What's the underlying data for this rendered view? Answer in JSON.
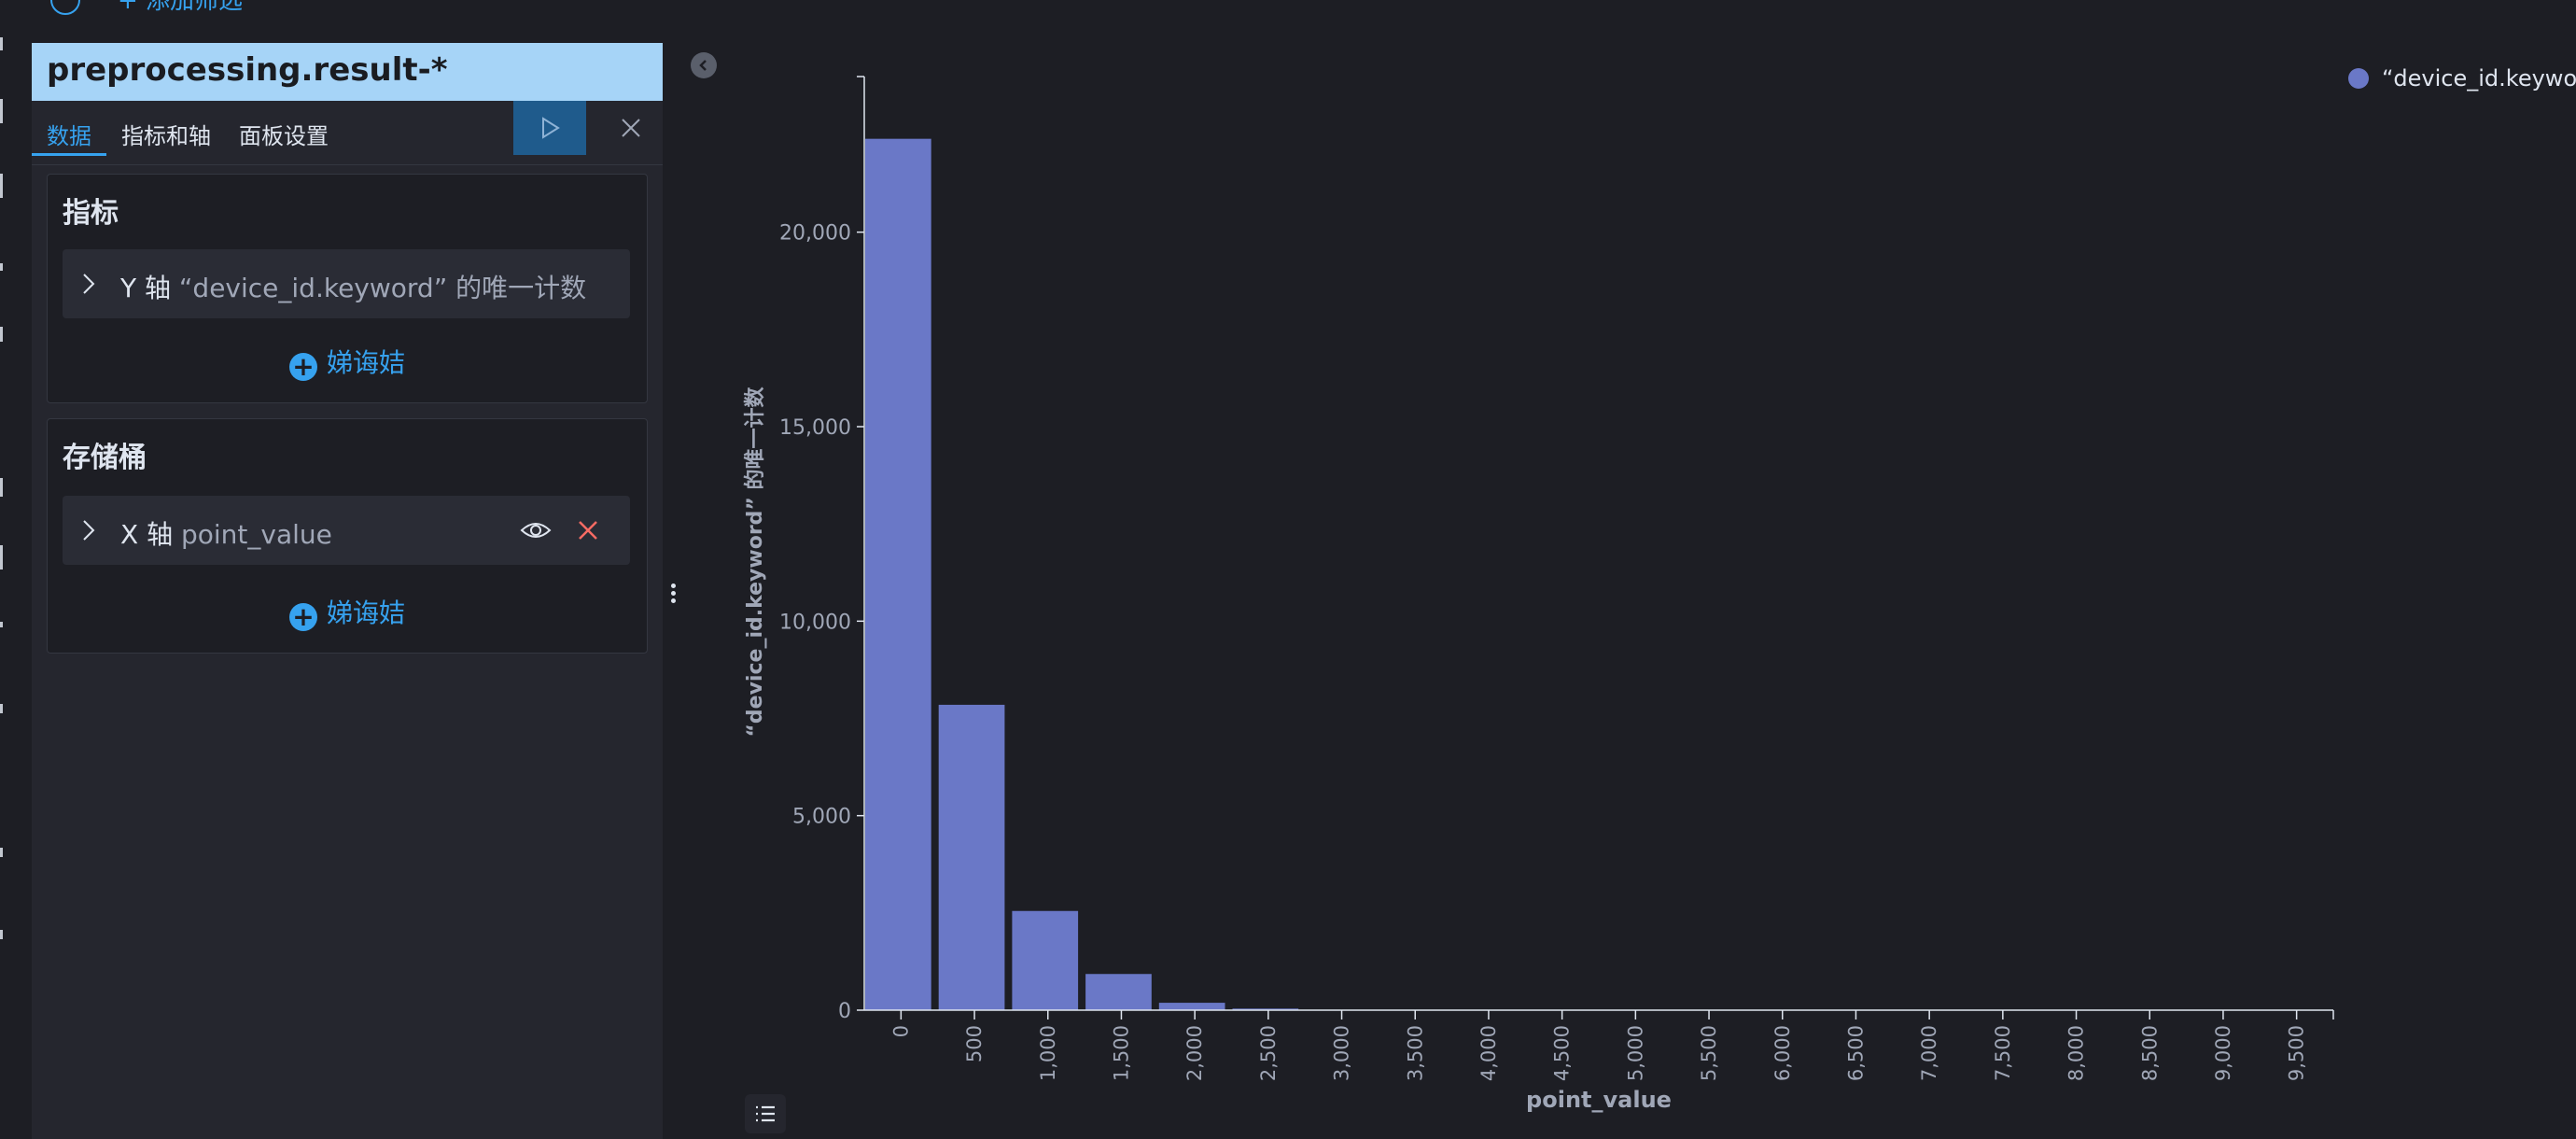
{
  "top_bar": {
    "add_filter_label": "+ 添加筛选"
  },
  "editor": {
    "index_pattern": "preprocessing.result-*",
    "tabs": [
      {
        "label": "数据",
        "active": true
      },
      {
        "label": "指标和轴",
        "active": false
      },
      {
        "label": "面板设置",
        "active": false
      }
    ],
    "metrics": {
      "title": "指标",
      "row": {
        "axis": "Y 轴",
        "field": "“device_id.keyword” 的唯一计数"
      },
      "add_label": "娣诲姞"
    },
    "buckets": {
      "title": "存储桶",
      "row": {
        "axis": "X 轴",
        "field": "point_value"
      },
      "add_label": "娣诲姞"
    }
  },
  "legend": {
    "label": "“device_id.keyword",
    "color": "#6a78c7"
  },
  "colors": {
    "accent": "#36a2ef",
    "bar": "#6a78c7",
    "danger": "#f86b63"
  },
  "icons": {
    "update": "play-icon",
    "close": "close-icon",
    "collapse": "chevron-left-icon",
    "visibility": "eye-icon",
    "remove": "cross-icon",
    "legend_toggle": "list-icon"
  },
  "chart_data": {
    "type": "bar",
    "xlabel": "point_value",
    "ylabel": "“device_id.keyword” 的唯一计数",
    "x": [
      0,
      500,
      1000,
      1500,
      2000,
      2500,
      3000
    ],
    "values": [
      22400,
      7850,
      2550,
      930,
      190,
      40,
      10
    ],
    "x_interval": 500,
    "xlim": [
      0,
      9500
    ],
    "ylim": [
      0,
      24000
    ],
    "x_ticks": [
      "0",
      "500",
      "1,000",
      "1,500",
      "2,000",
      "2,500",
      "3,000",
      "3,500",
      "4,000",
      "4,500",
      "5,000",
      "5,500",
      "6,000",
      "6,500",
      "7,000",
      "7,500",
      "8,000",
      "8,500",
      "9,000",
      "9,500"
    ],
    "y_ticks": [
      {
        "value": 0,
        "label": "0"
      },
      {
        "value": 5000,
        "label": "5,000"
      },
      {
        "value": 10000,
        "label": "10,000"
      },
      {
        "value": 15000,
        "label": "15,000"
      },
      {
        "value": 20000,
        "label": "20,000"
      }
    ],
    "legend_position": "top-right",
    "grid": false
  }
}
